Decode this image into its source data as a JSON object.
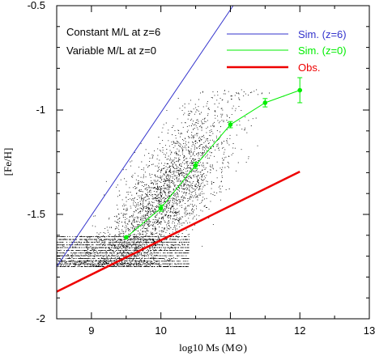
{
  "chart_data": {
    "type": "scatter",
    "xlabel": "log10 Ms (M⊙)",
    "ylabel": "[Fe/H]",
    "xlim": [
      8.5,
      13
    ],
    "ylim": [
      -2,
      -0.5
    ],
    "x_ticks": [
      "9",
      "10",
      "11",
      "12",
      "13"
    ],
    "y_ticks": [
      "-0.5",
      "-1",
      "-1.5",
      "-2"
    ],
    "x_tick_values": [
      9,
      10,
      11,
      12,
      13
    ],
    "y_tick_values": [
      -0.5,
      -1,
      -1.5,
      -2
    ],
    "annotations": [
      "Constant M/L at z=6",
      "Variable M/L at z=0"
    ],
    "legend_position": "top-right",
    "series": [
      {
        "name": "Sim. (z=6)",
        "kind": "line",
        "color": "#3333cc",
        "x": [
          8.5,
          11.04
        ],
        "y": [
          -1.75,
          -0.5
        ]
      },
      {
        "name": "Sim. (z=0)",
        "kind": "line+markers",
        "color": "#00ee00",
        "x": [
          9.5,
          10.0,
          10.5,
          11.0,
          11.5,
          12.0
        ],
        "y": [
          -1.61,
          -1.47,
          -1.265,
          -1.07,
          -0.965,
          -0.905
        ],
        "yerr": [
          0.0,
          0.015,
          0.015,
          0.015,
          0.02,
          0.06
        ]
      },
      {
        "name": "Obs.",
        "kind": "line",
        "color": "#ee0000",
        "x": [
          8.5,
          12.0
        ],
        "y": [
          -1.87,
          -1.295
        ]
      }
    ],
    "scatter_cloud": {
      "color": "#000000",
      "x_range": [
        8.5,
        12.0
      ],
      "y_range": [
        -1.75,
        -0.9
      ]
    }
  }
}
